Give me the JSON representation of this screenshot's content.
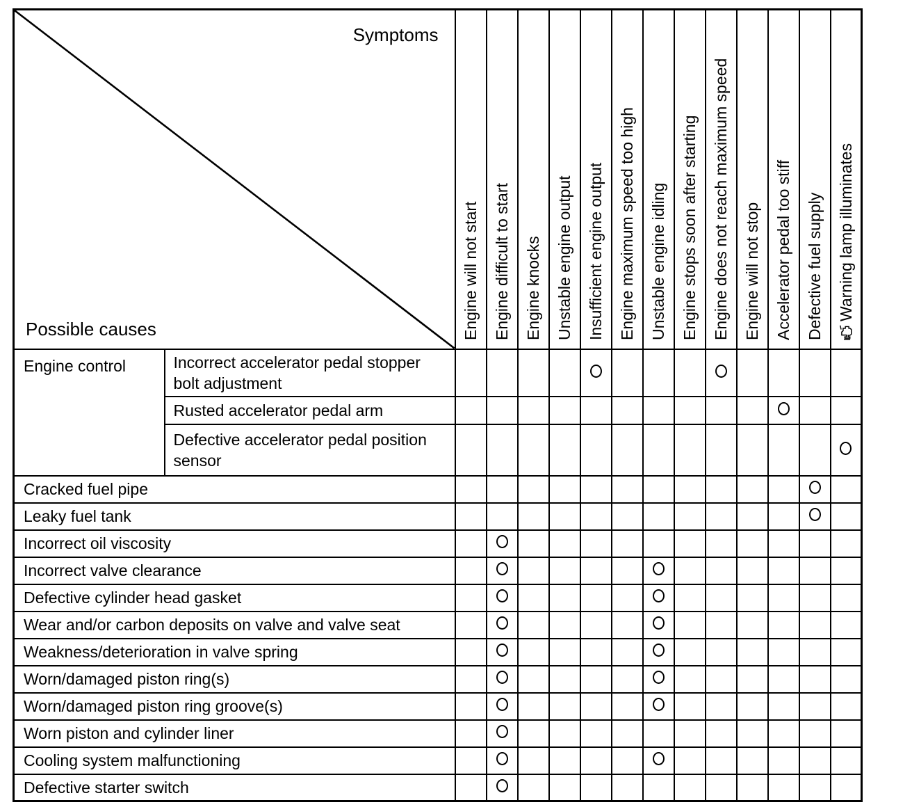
{
  "table": {
    "corner": {
      "top_right_label": "Symptoms",
      "bottom_left_label": "Possible causes"
    },
    "symptom_columns": [
      {
        "label": "Engine will not start"
      },
      {
        "label": "Engine difficult to start"
      },
      {
        "label": "Engine knocks"
      },
      {
        "label": "Unstable engine output"
      },
      {
        "label": "Insufficient engine output"
      },
      {
        "label": "Engine maximum speed too high"
      },
      {
        "label": "Unstable engine idling"
      },
      {
        "label": "Engine stops soon after starting"
      },
      {
        "label": "Engine does not reach maximum speed"
      },
      {
        "label": "Engine will not stop"
      },
      {
        "label": "Accelerator pedal too stiff"
      },
      {
        "label": "Defective fuel supply"
      },
      {
        "label": "Warning lamp illuminates",
        "icon": "engine-warning-icon"
      }
    ],
    "groups": [
      {
        "group_label": "Engine control",
        "rows": [
          {
            "cause": "Incorrect accelerator pedal stopper bolt adjustment",
            "marked_symptom_columns": [
              5,
              9
            ]
          },
          {
            "cause": "Rusted accelerator pedal arm",
            "marked_symptom_columns": [
              11
            ]
          },
          {
            "cause": "Defective accelerator pedal position sensor",
            "marked_symptom_columns": [
              13
            ]
          }
        ]
      }
    ],
    "rows": [
      {
        "cause": "Cracked fuel pipe",
        "marked_symptom_columns": [
          12
        ]
      },
      {
        "cause": "Leaky fuel tank",
        "marked_symptom_columns": [
          12
        ]
      },
      {
        "cause": "Incorrect oil viscosity",
        "marked_symptom_columns": [
          2
        ]
      },
      {
        "cause": "Incorrect valve clearance",
        "marked_symptom_columns": [
          2,
          7
        ]
      },
      {
        "cause": "Defective cylinder head gasket",
        "marked_symptom_columns": [
          2,
          7
        ]
      },
      {
        "cause": "Wear and/or carbon deposits on valve and valve seat",
        "marked_symptom_columns": [
          2,
          7
        ]
      },
      {
        "cause": "Weakness/deterioration in valve spring",
        "marked_symptom_columns": [
          2,
          7
        ]
      },
      {
        "cause": "Worn/damaged piston ring(s)",
        "marked_symptom_columns": [
          2,
          7
        ]
      },
      {
        "cause": "Worn/damaged piston ring groove(s)",
        "marked_symptom_columns": [
          2,
          7
        ]
      },
      {
        "cause": "Worn piston and cylinder liner",
        "marked_symptom_columns": [
          2
        ]
      },
      {
        "cause": "Cooling system malfunctioning",
        "marked_symptom_columns": [
          2,
          7
        ]
      },
      {
        "cause": "Defective starter switch",
        "marked_symptom_columns": [
          2
        ]
      }
    ],
    "mark_symbol": "circle",
    "colors": {
      "line": "#000000",
      "background": "#ffffff",
      "text": "#000000"
    }
  }
}
